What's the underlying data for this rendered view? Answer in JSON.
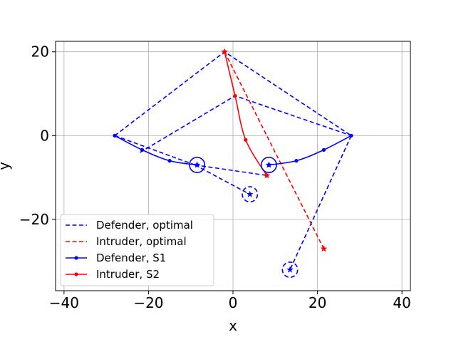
{
  "chart_data": {
    "type": "line",
    "title": "",
    "xlabel": "x",
    "ylabel": "y",
    "xlim": [
      -42,
      42
    ],
    "ylim": [
      -37,
      22.5
    ],
    "xticks": [
      -40,
      -20,
      0,
      20,
      40
    ],
    "yticks": [
      -20,
      0,
      20
    ],
    "xtick_labels": [
      "−40",
      "−20",
      "0",
      "20",
      "40"
    ],
    "ytick_labels": [
      "−20",
      "0",
      "20"
    ],
    "grid": true,
    "legend": {
      "placement": "lower-left",
      "entries": [
        {
          "label": "Defender, optimal",
          "color": "#0000ff",
          "style": "dashed",
          "marker": "none"
        },
        {
          "label": "Intruder, optimal",
          "color": "#ff0000",
          "style": "dashed",
          "marker": "none"
        },
        {
          "label": "Defender, S1",
          "color": "#0000ff",
          "style": "solid",
          "marker": "dot"
        },
        {
          "label": "Intruder, S2",
          "color": "#ff0000",
          "style": "solid",
          "marker": "dot"
        }
      ]
    },
    "series": [
      {
        "label": "Defender, optimal",
        "color": "#0000ff",
        "style": "dashed",
        "marker": "none",
        "x": [
          -28,
          -2,
          28
        ],
        "y": [
          0,
          20,
          0
        ]
      },
      {
        "label": "Defender, optimal",
        "color": "#0000ff",
        "style": "dashed",
        "marker": "none",
        "x": [
          -22,
          0.5,
          28
        ],
        "y": [
          -4,
          9.5,
          0
        ]
      },
      {
        "label": "Defender, optimal",
        "color": "#0000ff",
        "style": "dashed",
        "marker": "none",
        "x": [
          -28,
          -9
        ],
        "y": [
          0,
          -7
        ]
      },
      {
        "label": "Defender, optimal",
        "color": "#0000ff",
        "style": "dashed",
        "marker": "none",
        "x": [
          -9,
          8
        ],
        "y": [
          -7,
          -9.5
        ]
      },
      {
        "label": "Defender, optimal",
        "color": "#0000ff",
        "style": "dashed",
        "marker": "none",
        "x": [
          -9,
          4
        ],
        "y": [
          -7,
          -14
        ]
      },
      {
        "label": "Defender, optimal",
        "color": "#0000ff",
        "style": "dashed",
        "marker": "none",
        "x": [
          28,
          13.5
        ],
        "y": [
          0,
          -32
        ]
      },
      {
        "label": "Intruder, optimal",
        "color": "#ff0000",
        "style": "dashed",
        "marker": "none",
        "x": [
          -2,
          21.5
        ],
        "y": [
          20,
          -27
        ]
      },
      {
        "label": "Defender, S1",
        "color": "#0000ff",
        "style": "solid",
        "marker": "dot",
        "x": [
          -28,
          -21.5,
          -15,
          -8.5
        ],
        "y": [
          0,
          -3.4,
          -6,
          -7
        ]
      },
      {
        "label": "Defender, S1",
        "color": "#0000ff",
        "style": "solid",
        "marker": "dot",
        "x": [
          28,
          21.5,
          15,
          8.5
        ],
        "y": [
          0,
          -3.4,
          -6,
          -7
        ]
      },
      {
        "label": "Intruder, S2",
        "color": "#ff0000",
        "style": "solid",
        "marker": "dot",
        "x": [
          -2,
          0.5,
          3,
          8
        ],
        "y": [
          20,
          9.5,
          -1,
          -9.5
        ]
      }
    ],
    "stars": [
      {
        "x": -8.5,
        "y": -7,
        "color": "#0000ff"
      },
      {
        "x": 8.5,
        "y": -7,
        "color": "#0000ff"
      },
      {
        "x": 4,
        "y": -14,
        "color": "#0000ff"
      },
      {
        "x": 13.5,
        "y": -32,
        "color": "#0000ff"
      },
      {
        "x": -2,
        "y": 20,
        "color": "#ff0000"
      },
      {
        "x": 21.5,
        "y": -27,
        "color": "#ff0000"
      },
      {
        "x": 8,
        "y": -9.5,
        "color": "#ff0000"
      }
    ],
    "circles": [
      {
        "x": -8.5,
        "y": -7,
        "r": 1.8,
        "style": "solid",
        "color": "#0000ff"
      },
      {
        "x": 8.5,
        "y": -7,
        "r": 1.8,
        "style": "solid",
        "color": "#0000ff"
      },
      {
        "x": 4,
        "y": -14,
        "r": 1.8,
        "style": "dashed",
        "color": "#0000ff"
      },
      {
        "x": 13.5,
        "y": -32,
        "r": 1.8,
        "style": "dashed",
        "color": "#0000ff"
      }
    ]
  }
}
